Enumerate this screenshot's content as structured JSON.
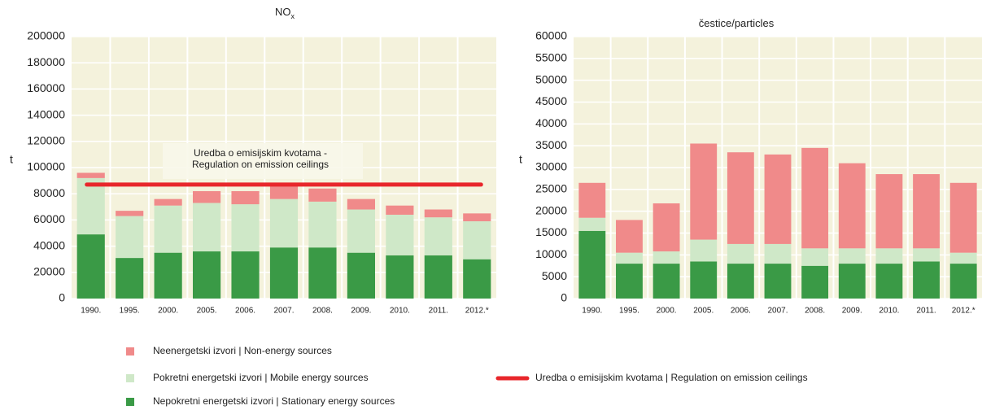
{
  "chart_data": [
    {
      "type": "bar",
      "stacked": true,
      "title": "NO",
      "title_subscript": "x",
      "ylabel": "t",
      "categories": [
        "1990.",
        "1995.",
        "2000.",
        "2005.",
        "2006.",
        "2007.",
        "2008.",
        "2009.",
        "2010.",
        "2011.",
        "2012.*"
      ],
      "series": [
        {
          "name": "Nepokretni energetski izvori | Stationary energy sources",
          "color": "#3a9a46",
          "values": [
            49000,
            31000,
            35000,
            36000,
            36000,
            39000,
            39000,
            35000,
            33000,
            33000,
            30000
          ]
        },
        {
          "name": "Pokretni energetski izvori | Mobile energy sources",
          "color": "#cfe8c8",
          "values": [
            43000,
            32000,
            36000,
            37000,
            36000,
            37000,
            35000,
            33000,
            31000,
            29000,
            29000
          ]
        },
        {
          "name": "Neenergetski izvori | Non-energy sources",
          "color": "#f08a8a",
          "values": [
            4000,
            4000,
            5000,
            9000,
            10000,
            10000,
            10000,
            8000,
            7000,
            6000,
            6000
          ]
        }
      ],
      "reference_line": {
        "name": "Uredba o emisijskim kvotama | Regulation on emission ceilings",
        "value": 87000,
        "color": "#e8262b"
      },
      "annotation": [
        "Uredba o emisijskim kvotama -",
        "Regulation on emission ceilings"
      ],
      "ylim": [
        0,
        200000
      ],
      "yticks": [
        0,
        20000,
        40000,
        60000,
        80000,
        100000,
        120000,
        140000,
        160000,
        180000,
        200000
      ],
      "grid": true
    },
    {
      "type": "bar",
      "stacked": true,
      "title": "čestice/particles",
      "ylabel": "t",
      "categories": [
        "1990.",
        "1995.",
        "2000.",
        "2005.",
        "2006.",
        "2007.",
        "2008.",
        "2009.",
        "2010.",
        "2011.",
        "2012.*"
      ],
      "series": [
        {
          "name": "Nepokretni energetski izvori | Stationary energy sources",
          "color": "#3a9a46",
          "values": [
            15500,
            8000,
            8000,
            8500,
            8000,
            8000,
            7500,
            8000,
            8000,
            8500,
            8000
          ]
        },
        {
          "name": "Pokretni energetski izvori | Mobile energy sources",
          "color": "#cfe8c8",
          "values": [
            3000,
            2500,
            2800,
            5000,
            4500,
            4500,
            4000,
            3500,
            3500,
            3000,
            2500
          ]
        },
        {
          "name": "Neenergetski izvori | Non-energy sources",
          "color": "#f08a8a",
          "values": [
            8000,
            7500,
            11000,
            22000,
            21000,
            20500,
            23000,
            19500,
            17000,
            17000,
            16000
          ]
        }
      ],
      "ylim": [
        0,
        60000
      ],
      "yticks": [
        0,
        5000,
        10000,
        15000,
        20000,
        25000,
        30000,
        35000,
        40000,
        45000,
        50000,
        55000,
        60000
      ],
      "grid": true
    }
  ]
}
